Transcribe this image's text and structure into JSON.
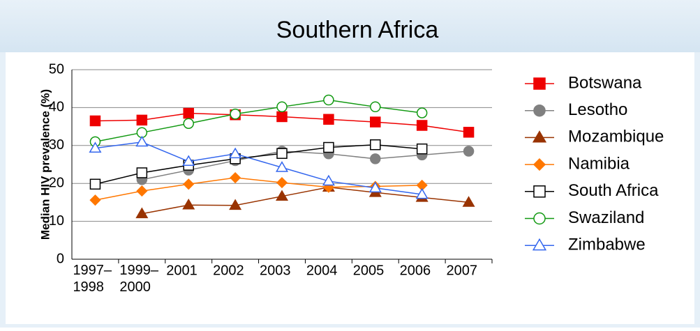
{
  "chart_data": {
    "type": "line",
    "title": "Southern Africa",
    "y_label": "Median HIV prevalence (%)",
    "categories": [
      "1997–1998",
      "1999–2000",
      "2001",
      "2002",
      "2003",
      "2004",
      "2005",
      "2006",
      "2007"
    ],
    "ylim": [
      0,
      50
    ],
    "yticks": [
      0,
      10,
      20,
      30,
      40,
      50
    ],
    "grid": true,
    "legend": "right",
    "series": [
      {
        "name": "Botswana",
        "color": "#ee0000",
        "marker": "square",
        "filled": true,
        "values": [
          36.5,
          36.7,
          38.5,
          38.1,
          37.6,
          36.9,
          36.2,
          35.3,
          33.5
        ]
      },
      {
        "name": "Lesotho",
        "color": "#808080",
        "marker": "circle",
        "filled": true,
        "values": [
          null,
          21,
          23.5,
          26,
          28.5,
          27.8,
          26.5,
          27.5,
          28.5
        ]
      },
      {
        "name": "Mozambique",
        "color": "#993300",
        "marker": "triangle",
        "filled": true,
        "values": [
          null,
          12,
          14.3,
          14.2,
          16.6,
          19,
          17.6,
          16.3,
          15
        ]
      },
      {
        "name": "Namibia",
        "color": "#ff7700",
        "marker": "diamond",
        "filled": true,
        "values": [
          15.6,
          18,
          19.8,
          21.5,
          20.2,
          19,
          19.2,
          19.5,
          null
        ]
      },
      {
        "name": "South Africa",
        "color": "#000000",
        "marker": "square",
        "filled": false,
        "values": [
          19.8,
          22.8,
          24.8,
          26.5,
          27.9,
          29.5,
          30.2,
          29.1,
          null
        ]
      },
      {
        "name": "Swaziland",
        "color": "#119911",
        "marker": "circle",
        "filled": false,
        "values": [
          31,
          33.4,
          35.8,
          38.3,
          40.2,
          42,
          40.2,
          38.6,
          null
        ]
      },
      {
        "name": "Zimbabwe",
        "color": "#3366ee",
        "marker": "triangle",
        "filled": false,
        "values": [
          29.3,
          30.9,
          25.8,
          27.8,
          24.2,
          20.6,
          18.8,
          17.1,
          null
        ]
      }
    ]
  }
}
